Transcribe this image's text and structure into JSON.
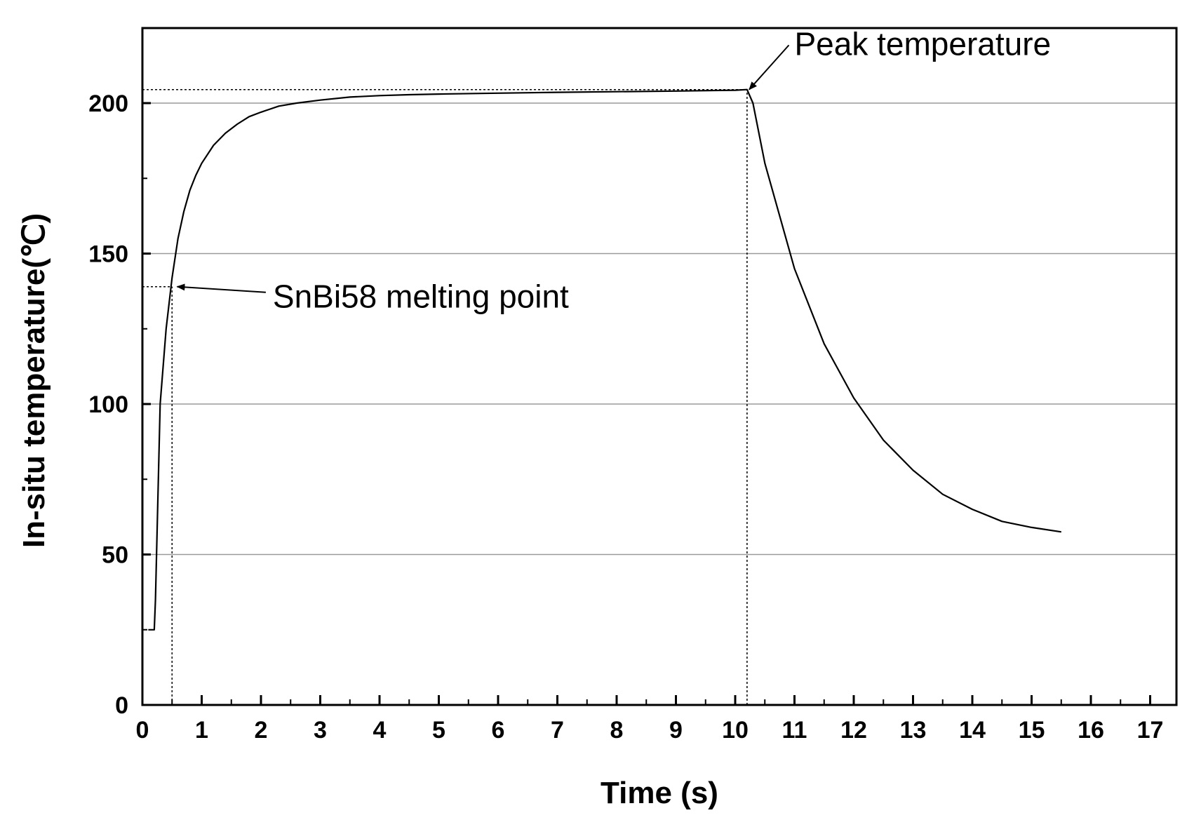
{
  "chart_data": {
    "type": "line",
    "xlabel": "Time (s)",
    "ylabel": "In-situ temperature(℃)",
    "xlim": [
      0,
      17.5
    ],
    "ylim": [
      0,
      225
    ],
    "x_ticks": [
      "0",
      "1",
      "2",
      "3",
      "4",
      "5",
      "6",
      "7",
      "8",
      "9",
      "10",
      "11",
      "12",
      "13",
      "14",
      "15",
      "16",
      "17"
    ],
    "y_ticks": [
      "0",
      "50",
      "100",
      "150",
      "200"
    ],
    "grid": "horizontal",
    "series": [
      {
        "name": "In-situ temperature",
        "x": [
          0.1,
          0.2,
          0.22,
          0.3,
          0.4,
          0.5,
          0.6,
          0.7,
          0.8,
          0.9,
          1.0,
          1.2,
          1.4,
          1.6,
          1.8,
          2.0,
          2.3,
          2.6,
          3.0,
          3.5,
          4.0,
          4.5,
          5.0,
          6.0,
          7.0,
          8.0,
          9.0,
          10.0,
          10.2,
          10.3,
          10.5,
          11.0,
          11.5,
          12.0,
          12.5,
          13.0,
          13.5,
          14.0,
          14.5,
          15.0,
          15.5
        ],
        "y": [
          25,
          25,
          35,
          100,
          125,
          142,
          155,
          164,
          171,
          176,
          180,
          186,
          190,
          193,
          195.5,
          197,
          199,
          200,
          201,
          202,
          202.5,
          202.8,
          203,
          203.3,
          203.6,
          203.8,
          204,
          204.3,
          204.5,
          200,
          180,
          145,
          120,
          102,
          88,
          78,
          70,
          65,
          61,
          59,
          57.5
        ]
      }
    ],
    "reference_lines": [
      {
        "name": "melting-point-horizontal",
        "from": [
          0,
          139
        ],
        "to": [
          0.5,
          139
        ]
      },
      {
        "name": "melting-point-vertical",
        "from": [
          0.5,
          0
        ],
        "to": [
          0.5,
          139
        ]
      },
      {
        "name": "peak-horizontal",
        "from": [
          0,
          204.5
        ],
        "to": [
          10.2,
          204.5
        ]
      },
      {
        "name": "peak-vertical",
        "from": [
          10.2,
          0
        ],
        "to": [
          10.2,
          204.5
        ]
      }
    ],
    "annotations": [
      {
        "name": "melting-point-label",
        "text": "SnBi58 melting point",
        "point_to": [
          0.55,
          139
        ],
        "text_at": [
          2.2,
          132
        ]
      },
      {
        "name": "peak-label",
        "text": "Peak temperature",
        "point_to": [
          10.2,
          204.5
        ],
        "text_at": [
          11.0,
          216
        ]
      }
    ]
  }
}
